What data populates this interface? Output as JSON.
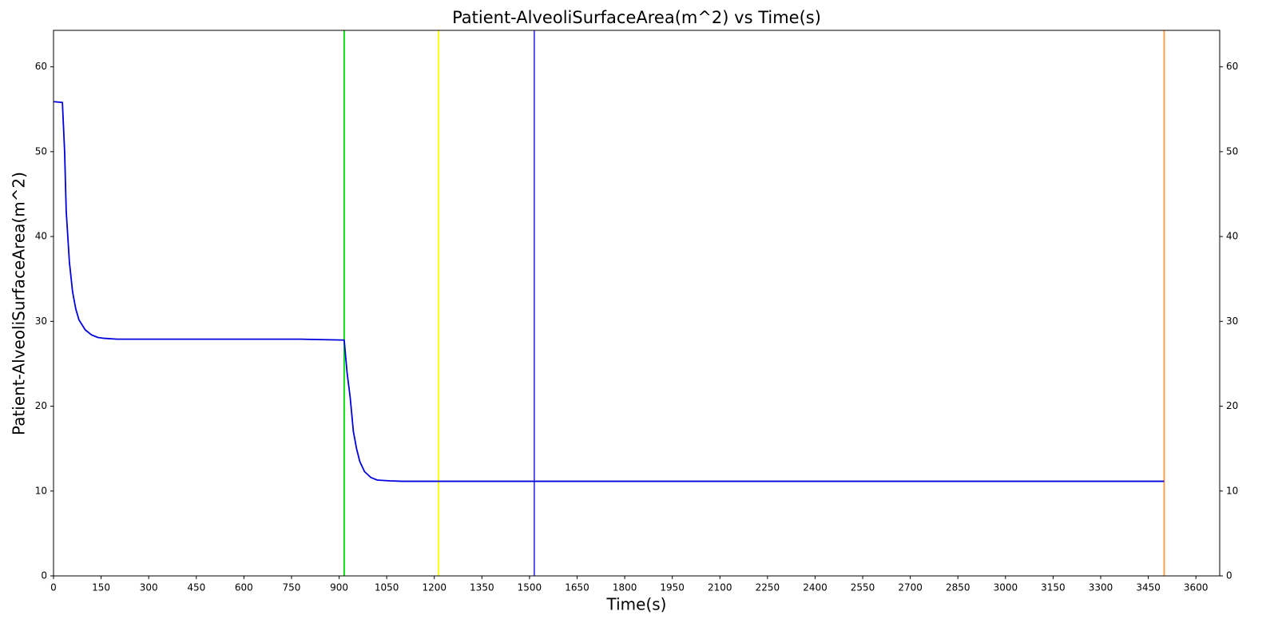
{
  "chart_data": {
    "type": "line",
    "title": "Patient-AlveoliSurfaceArea(m^2) vs Time(s)",
    "x_label": "Time(s)",
    "y_label": "Patient-AlveoliSurfaceArea(m^2)",
    "x": [
      0,
      28,
      35,
      40,
      50,
      60,
      70,
      80,
      100,
      120,
      140,
      160,
      200,
      780,
      916,
      925,
      935,
      945,
      955,
      965,
      980,
      1000,
      1020,
      1060,
      1100,
      3500
    ],
    "series": [
      {
        "name": "Patient-AlveoliSurfaceArea",
        "color": "#0000dd",
        "values": [
          55.9,
          55.8,
          50,
          43,
          37,
          33.5,
          31.5,
          30.2,
          29,
          28.4,
          28.1,
          28.0,
          27.9,
          27.9,
          27.8,
          24,
          21,
          17,
          15,
          13.5,
          12.3,
          11.6,
          11.3,
          11.2,
          11.15,
          11.15
        ]
      }
    ],
    "vlines": [
      {
        "x": 916,
        "color": "#00dd00"
      },
      {
        "x": 1213,
        "color": "#ffff00"
      },
      {
        "x": 1515,
        "color": "#4444ee"
      },
      {
        "x": 3500,
        "color": "#ff9944"
      }
    ],
    "xlim": [
      0,
      3675
    ],
    "xticks": [
      0,
      150,
      300,
      450,
      600,
      750,
      900,
      1050,
      1200,
      1350,
      1500,
      1650,
      1800,
      1950,
      2100,
      2250,
      2400,
      2550,
      2700,
      2850,
      3000,
      3150,
      3300,
      3450,
      3600
    ],
    "ylim": [
      0,
      64.3
    ],
    "yticks": [
      0,
      10,
      20,
      30,
      40,
      50,
      60
    ],
    "y2lim": [
      0,
      64.3
    ],
    "y2ticks": [
      0,
      10,
      20,
      30,
      40,
      50,
      60
    ],
    "grid": false
  }
}
